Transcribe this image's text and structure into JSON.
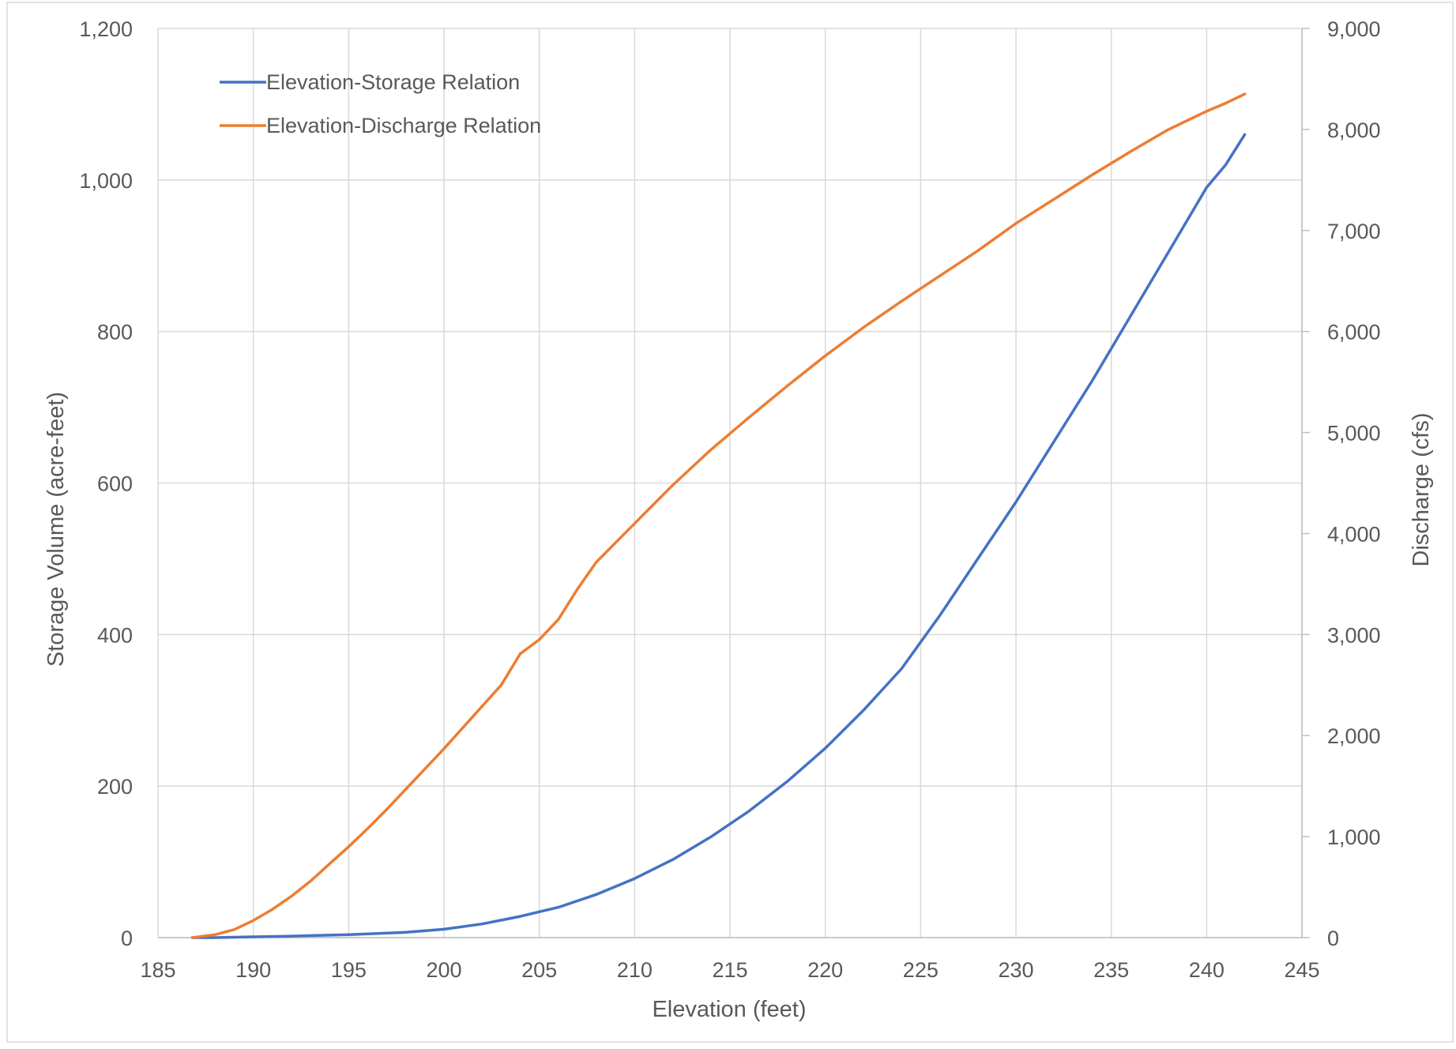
{
  "chart_data": {
    "type": "line",
    "title": "",
    "xlabel": "Elevation (feet)",
    "ylabel": "Storage Volume (acre-feet)",
    "y2label": "Discharge (cfs)",
    "xlim": [
      185,
      245
    ],
    "ylim": [
      0,
      1200
    ],
    "y2lim": [
      0,
      9000
    ],
    "x_ticks": [
      185,
      190,
      195,
      200,
      205,
      210,
      215,
      220,
      225,
      230,
      235,
      240,
      245
    ],
    "x_tick_labels": [
      "185",
      "190",
      "195",
      "200",
      "205",
      "210",
      "215",
      "220",
      "225",
      "230",
      "235",
      "240",
      "245"
    ],
    "y_ticks": [
      0,
      200,
      400,
      600,
      800,
      1000,
      1200
    ],
    "y_tick_labels": [
      "0",
      "200",
      "400",
      "600",
      "800",
      "1,000",
      "1,200"
    ],
    "y2_ticks": [
      0,
      1000,
      2000,
      3000,
      4000,
      5000,
      6000,
      7000,
      8000,
      9000
    ],
    "y2_tick_labels": [
      "0",
      "1,000",
      "2,000",
      "3,000",
      "4,000",
      "5,000",
      "6,000",
      "7,000",
      "8,000",
      "9,000"
    ],
    "grid": true,
    "legend_position": "top-left",
    "series": [
      {
        "name": "Elevation-Storage Relation",
        "axis": "left",
        "color": "#4472C4",
        "x": [
          186.8,
          188,
          190,
          192,
          195,
          198,
          200,
          202,
          204,
          206,
          208,
          210,
          212,
          214,
          216,
          218,
          220,
          222,
          224,
          226,
          228,
          230,
          232,
          234,
          236,
          238,
          240,
          241,
          242
        ],
        "y": [
          0,
          0,
          1,
          2,
          4,
          7,
          11,
          18,
          28,
          40,
          57,
          78,
          103,
          133,
          167,
          206,
          250,
          300,
          355,
          425,
          500,
          575,
          655,
          735,
          820,
          905,
          990,
          1020,
          1060
        ]
      },
      {
        "name": "Elevation-Discharge Relation",
        "axis": "right",
        "color": "#ED7D31",
        "x": [
          186.8,
          188,
          189,
          190,
          191,
          192,
          193,
          194,
          195,
          196,
          197,
          198,
          199,
          200,
          201,
          202,
          203,
          204,
          205,
          206,
          207,
          208,
          210,
          212,
          214,
          216,
          218,
          220,
          222,
          224,
          226,
          228,
          230,
          232,
          234,
          236,
          238,
          240,
          241,
          242
        ],
        "y": [
          0,
          30,
          80,
          170,
          280,
          410,
          560,
          730,
          900,
          1080,
          1270,
          1470,
          1670,
          1870,
          2080,
          2290,
          2500,
          2810,
          2950,
          3150,
          3450,
          3720,
          4100,
          4480,
          4830,
          5150,
          5460,
          5760,
          6040,
          6300,
          6550,
          6800,
          7070,
          7310,
          7550,
          7780,
          8000,
          8180,
          8260,
          8350
        ]
      }
    ]
  }
}
